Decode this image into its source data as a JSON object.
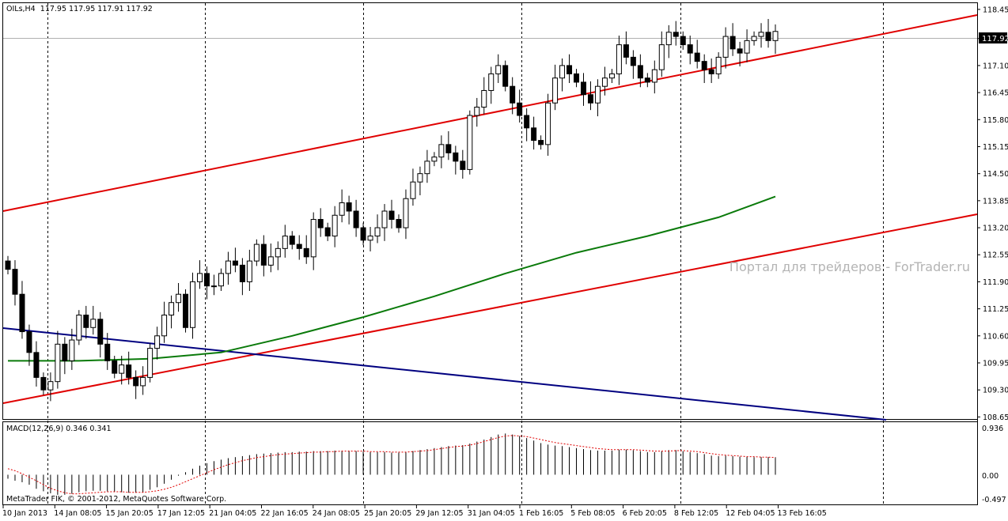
{
  "header": {
    "symbol_info": "OILs,H4  117.95 117.95 117.91 117.92",
    "current_price_badge": "117.92"
  },
  "watermark": "Портал для трейдеров - ForTrader.ru",
  "copyright": "MetaTrader FIK, © 2001-2012, MetaQuotes Software Corp.",
  "macd_panel": {
    "label": "MACD(12,26,9) 0.346 0.341",
    "scale_labels": [
      "0.936",
      "0.00",
      "-0.497"
    ]
  },
  "colors": {
    "background": "#ffffff",
    "candle_outline": "#000000",
    "bear_candle": "#000000",
    "bull_candle": "#ffffff",
    "channel": "#e00000",
    "moving_average": "#0a7a0a",
    "downtrend": "#000080",
    "macd_signal": "#e00000"
  },
  "chart_data": {
    "type": "candlestick",
    "timeframe": "H4",
    "price_axis": {
      "ticks": [
        "118.45",
        "117.75",
        "117.10",
        "116.45",
        "115.80",
        "115.15",
        "114.50",
        "113.85",
        "113.20",
        "112.55",
        "111.90",
        "111.25",
        "110.60",
        "109.95",
        "109.30",
        "108.65"
      ],
      "range": [
        108.6,
        118.6
      ]
    },
    "time_axis": {
      "labels": [
        "10 Jan 2013",
        "14 Jan 08:05",
        "15 Jan 20:05",
        "17 Jan 12:05",
        "21 Jan 04:05",
        "22 Jan 16:05",
        "24 Jan 08:05",
        "25 Jan 20:05",
        "29 Jan 12:05",
        "31 Jan 04:05",
        "1 Feb 16:05",
        "5 Feb 08:05",
        "6 Feb 20:05",
        "8 Feb 12:05",
        "12 Feb 04:05",
        "13 Feb 16:05"
      ]
    },
    "candles_close": [
      112.2,
      111.6,
      110.7,
      110.2,
      109.6,
      109.3,
      109.5,
      110.4,
      110.0,
      110.5,
      111.1,
      110.8,
      111.0,
      110.4,
      110.0,
      109.7,
      109.9,
      109.6,
      109.4,
      109.6,
      110.3,
      110.6,
      111.1,
      111.4,
      111.6,
      110.8,
      111.9,
      112.1,
      111.8,
      111.8,
      112.1,
      112.4,
      112.3,
      111.9,
      112.4,
      112.8,
      112.3,
      112.5,
      112.7,
      113.0,
      112.8,
      112.7,
      112.5,
      113.4,
      113.2,
      113.0,
      113.5,
      113.8,
      113.6,
      113.2,
      112.9,
      113.0,
      113.2,
      113.6,
      113.4,
      113.2,
      113.9,
      114.3,
      114.5,
      114.8,
      114.9,
      115.2,
      115.0,
      114.8,
      114.6,
      115.9,
      116.1,
      116.5,
      116.9,
      117.1,
      116.6,
      116.2,
      115.9,
      115.6,
      115.3,
      115.2,
      116.2,
      116.8,
      117.1,
      116.9,
      116.7,
      116.4,
      116.2,
      116.6,
      116.8,
      116.9,
      117.6,
      117.3,
      117.1,
      116.8,
      116.7,
      117.0,
      117.6,
      117.9,
      117.8,
      117.6,
      117.4,
      117.2,
      117.0,
      116.9,
      117.3,
      117.8,
      117.5,
      117.4,
      117.7,
      117.8,
      117.9,
      117.7,
      117.92
    ],
    "moving_average": {
      "x": [
        0,
        10,
        20,
        30,
        40,
        50,
        60,
        70,
        80,
        90,
        100,
        108
      ],
      "values": [
        110.0,
        110.0,
        110.05,
        110.2,
        110.6,
        111.05,
        111.55,
        112.1,
        112.6,
        113.0,
        113.45,
        113.95
      ]
    },
    "macd": {
      "ylim": [
        -0.497,
        0.936
      ],
      "histogram": [
        -0.08,
        -0.12,
        -0.15,
        -0.2,
        -0.28,
        -0.33,
        -0.37,
        -0.4,
        -0.4,
        -0.38,
        -0.35,
        -0.33,
        -0.32,
        -0.32,
        -0.33,
        -0.34,
        -0.35,
        -0.36,
        -0.36,
        -0.35,
        -0.3,
        -0.25,
        -0.18,
        -0.1,
        -0.02,
        0.05,
        0.12,
        0.18,
        0.23,
        0.27,
        0.3,
        0.33,
        0.35,
        0.37,
        0.39,
        0.41,
        0.42,
        0.43,
        0.44,
        0.45,
        0.45,
        0.46,
        0.46,
        0.47,
        0.47,
        0.47,
        0.48,
        0.48,
        0.48,
        0.47,
        0.46,
        0.45,
        0.45,
        0.45,
        0.44,
        0.44,
        0.45,
        0.47,
        0.49,
        0.51,
        0.53,
        0.55,
        0.57,
        0.58,
        0.59,
        0.62,
        0.66,
        0.7,
        0.75,
        0.8,
        0.82,
        0.8,
        0.77,
        0.73,
        0.68,
        0.63,
        0.6,
        0.58,
        0.57,
        0.55,
        0.53,
        0.51,
        0.49,
        0.48,
        0.48,
        0.48,
        0.5,
        0.5,
        0.49,
        0.47,
        0.45,
        0.45,
        0.47,
        0.49,
        0.49,
        0.47,
        0.45,
        0.43,
        0.41,
        0.38,
        0.37,
        0.38,
        0.37,
        0.36,
        0.36,
        0.35,
        0.35,
        0.35,
        0.35
      ],
      "signal": [
        0.12,
        0.08,
        0.02,
        -0.05,
        -0.12,
        -0.2,
        -0.27,
        -0.32,
        -0.36,
        -0.38,
        -0.38,
        -0.37,
        -0.36,
        -0.35,
        -0.34,
        -0.34,
        -0.34,
        -0.35,
        -0.35,
        -0.35,
        -0.34,
        -0.32,
        -0.29,
        -0.25,
        -0.2,
        -0.14,
        -0.08,
        -0.02,
        0.04,
        0.1,
        0.15,
        0.2,
        0.24,
        0.28,
        0.31,
        0.34,
        0.36,
        0.38,
        0.4,
        0.41,
        0.42,
        0.43,
        0.44,
        0.45,
        0.45,
        0.46,
        0.46,
        0.47,
        0.47,
        0.47,
        0.47,
        0.46,
        0.46,
        0.46,
        0.45,
        0.45,
        0.45,
        0.46,
        0.47,
        0.48,
        0.5,
        0.52,
        0.54,
        0.56,
        0.57,
        0.59,
        0.62,
        0.66,
        0.7,
        0.74,
        0.77,
        0.78,
        0.77,
        0.76,
        0.73,
        0.7,
        0.67,
        0.64,
        0.62,
        0.6,
        0.58,
        0.56,
        0.54,
        0.52,
        0.51,
        0.5,
        0.5,
        0.5,
        0.5,
        0.49,
        0.48,
        0.47,
        0.47,
        0.47,
        0.48,
        0.48,
        0.47,
        0.46,
        0.44,
        0.42,
        0.4,
        0.39,
        0.38,
        0.37,
        0.36,
        0.36,
        0.35,
        0.35,
        0.34
      ]
    }
  }
}
